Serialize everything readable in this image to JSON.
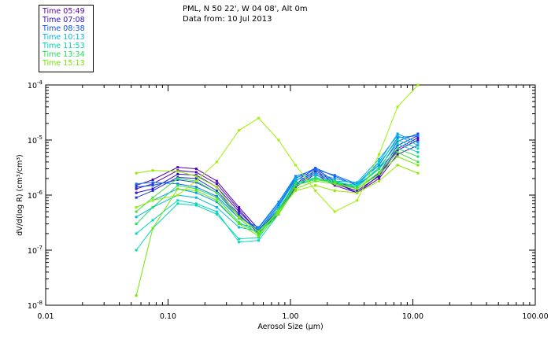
{
  "header": {
    "line1": "PML, N 50 22', W 04 08', Alt 0m",
    "line2": "Data from: 10 Jul 2013"
  },
  "legend": [
    {
      "label": "Time 05:49",
      "color": "#5a00a8"
    },
    {
      "label": "Time 07:08",
      "color": "#2a10d0"
    },
    {
      "label": "Time 08:38",
      "color": "#0a50e8"
    },
    {
      "label": "Time 10:13",
      "color": "#00b8e0"
    },
    {
      "label": "Time 11:53",
      "color": "#00d8b0"
    },
    {
      "label": "Time 13:34",
      "color": "#20e060"
    },
    {
      "label": "Time 15:13",
      "color": "#70e800"
    }
  ],
  "chart_data": {
    "type": "line",
    "title": "PML, N 50 22', W 04 08', Alt 0m",
    "xlabel": "Aerosol Size (µm)",
    "ylabel": "dV/d(log R) (cm³/cm³)",
    "x_scale": "log",
    "y_scale": "log",
    "xlim": [
      0.01,
      100.0
    ],
    "ylim": [
      1e-08,
      0.0001
    ],
    "x_ticks": [
      {
        "value": 0.01,
        "label": "0.01"
      },
      {
        "value": 0.1,
        "label": "0.10"
      },
      {
        "value": 1.0,
        "label": "1.00"
      },
      {
        "value": 10.0,
        "label": "10.00"
      },
      {
        "value": 100.0,
        "label": "100.00"
      }
    ],
    "y_ticks": [
      {
        "value": 1e-08,
        "exp": "-8"
      },
      {
        "value": 1e-07,
        "exp": "-7"
      },
      {
        "value": 1e-06,
        "exp": "-6"
      },
      {
        "value": 1e-05,
        "exp": "-5"
      },
      {
        "value": 0.0001,
        "exp": "-4"
      }
    ],
    "x": [
      0.055,
      0.075,
      0.12,
      0.17,
      0.25,
      0.38,
      0.55,
      0.8,
      1.1,
      1.6,
      2.3,
      3.5,
      5.3,
      7.5,
      11.0
    ],
    "series": [
      {
        "name": "Time 05:49",
        "color": "#5a00a8",
        "values": [
          1.3e-06,
          1.6e-06,
          2.8e-06,
          2.6e-06,
          1.6e-06,
          5.5e-07,
          2.1e-07,
          4.5e-07,
          1.4e-06,
          2.4e-06,
          1.5e-06,
          1.1e-06,
          2e-06,
          5.5e-06,
          8e-06
        ]
      },
      {
        "name": "Time 05:49",
        "color": "#4a08b8",
        "values": [
          1.5e-06,
          1.9e-06,
          3.2e-06,
          3e-06,
          1.8e-06,
          6e-07,
          2.4e-07,
          5e-07,
          1.5e-06,
          2.6e-06,
          1.6e-06,
          1.2e-06,
          2.2e-06,
          6.5e-06,
          1e-05
        ]
      },
      {
        "name": "Time 07:08",
        "color": "#2a10d0",
        "values": [
          1.1e-06,
          1.3e-06,
          2.4e-06,
          2.3e-06,
          1.4e-06,
          5e-07,
          2.2e-07,
          5.5e-07,
          1.6e-06,
          2.8e-06,
          1.7e-06,
          1.1e-06,
          2.3e-06,
          7e-06,
          1.1e-05
        ]
      },
      {
        "name": "Time 07:08",
        "color": "#2030d8",
        "values": [
          9e-07,
          1.2e-06,
          2.1e-06,
          2e-06,
          1.2e-06,
          4.5e-07,
          2e-07,
          5e-07,
          1.8e-06,
          3e-06,
          1.8e-06,
          1.3e-06,
          2.5e-06,
          8e-06,
          1.2e-05
        ]
      },
      {
        "name": "Time 08:38",
        "color": "#0a50e8",
        "values": [
          1.4e-06,
          1.5e-06,
          1.9e-06,
          1.7e-06,
          1.1e-06,
          4.2e-07,
          2.3e-07,
          6.5e-07,
          2e-06,
          3.1e-06,
          2.2e-06,
          1.5e-06,
          3e-06,
          9.5e-06,
          1.3e-05
        ]
      },
      {
        "name": "Time 08:38",
        "color": "#1070f0",
        "values": [
          1.6e-06,
          1.7e-06,
          1.6e-06,
          1.4e-06,
          9.5e-07,
          3.8e-07,
          2.6e-07,
          7.5e-07,
          2.2e-06,
          2.9e-06,
          2.3e-06,
          1.6e-06,
          3.5e-06,
          1.1e-05,
          1.2e-05
        ]
      },
      {
        "name": "Time 10:13",
        "color": "#00a0f0",
        "values": [
          6e-07,
          8e-07,
          1.3e-06,
          1.1e-06,
          7.5e-07,
          3e-07,
          2.5e-07,
          7e-07,
          2.1e-06,
          2.5e-06,
          2e-06,
          1.6e-06,
          4e-06,
          1.3e-05,
          9e-06
        ]
      },
      {
        "name": "Time 10:13",
        "color": "#00b8e0",
        "values": [
          4e-07,
          6e-07,
          1e-06,
          9e-07,
          6e-07,
          2.6e-07,
          2.2e-07,
          6e-07,
          1.9e-06,
          2.3e-06,
          1.8e-06,
          1.7e-06,
          4.5e-06,
          1.2e-05,
          8e-06
        ]
      },
      {
        "name": "Time 11:53",
        "color": "#00d8c0",
        "values": [
          2e-07,
          3.5e-07,
          8e-07,
          7e-07,
          5e-07,
          1.4e-07,
          1.5e-07,
          4.5e-07,
          1.5e-06,
          2e-06,
          1.7e-06,
          1.5e-06,
          3.8e-06,
          1e-05,
          7e-06
        ]
      },
      {
        "name": "Time 11:53",
        "color": "#00d8b0",
        "values": [
          1e-07,
          2.5e-07,
          7e-07,
          6.5e-07,
          4.5e-07,
          1.6e-07,
          1.7e-07,
          5e-07,
          1.6e-06,
          2.1e-06,
          1.6e-06,
          1.4e-06,
          3.2e-06,
          8.5e-06,
          6e-06
        ]
      },
      {
        "name": "Time 13:34",
        "color": "#20e060",
        "values": [
          3e-07,
          6e-07,
          1.5e-06,
          1.3e-06,
          9e-07,
          3.2e-07,
          2e-07,
          5.5e-07,
          1.7e-06,
          2e-06,
          1.8e-06,
          1.4e-06,
          3e-06,
          7e-06,
          5e-06
        ]
      },
      {
        "name": "Time 13:34",
        "color": "#40e040",
        "values": [
          5e-07,
          9e-07,
          2e-06,
          1.8e-06,
          1.1e-06,
          3.8e-07,
          1.9e-07,
          5.2e-07,
          1.5e-06,
          1.9e-06,
          1.7e-06,
          1.3e-06,
          2.6e-06,
          6e-06,
          4e-06
        ]
      },
      {
        "name": "Time 15:13",
        "color": "#70e800",
        "values": [
          1.5e-08,
          2.5e-07,
          1.3e-06,
          1.2e-06,
          8e-07,
          3e-07,
          1.8e-07,
          4.5e-07,
          1.3e-06,
          1.8e-06,
          1.6e-06,
          1.3e-06,
          2.4e-06,
          5e-06,
          3.5e-06
        ]
      },
      {
        "name": "Time 15:13",
        "color": "#90e800",
        "values": [
          2.5e-06,
          2.8e-06,
          2.7e-06,
          2.2e-06,
          1.4e-06,
          4e-07,
          2.2e-07,
          5e-07,
          1.2e-06,
          1.5e-06,
          1.2e-06,
          1.1e-06,
          1.8e-06,
          3.5e-06,
          2.5e-06
        ]
      },
      {
        "name": "Time 15:13",
        "color": "#a0f000",
        "values": [
          6e-07,
          8e-07,
          1e-06,
          1.8e-06,
          4e-06,
          1.5e-05,
          2.5e-05,
          1e-05,
          3.5e-06,
          1.2e-06,
          5e-07,
          8e-07,
          5.5e-06,
          4e-05,
          0.0001
        ]
      }
    ]
  }
}
